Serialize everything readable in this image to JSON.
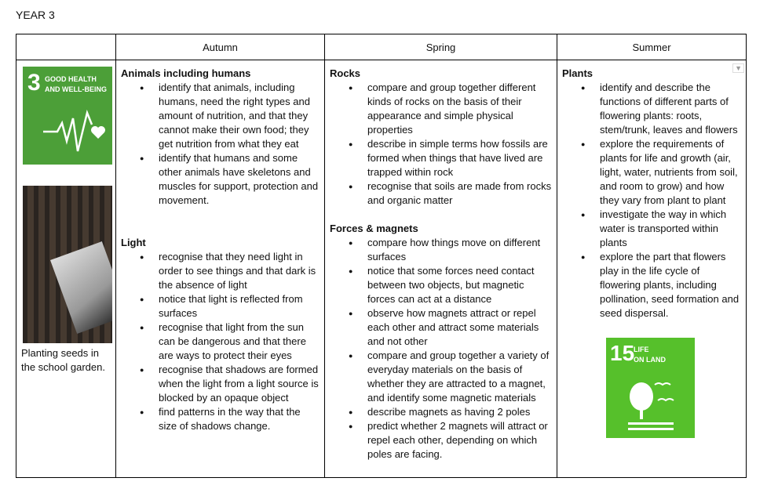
{
  "title": "YEAR 3",
  "headers": [
    "",
    "Autumn",
    "Spring",
    "Summer"
  ],
  "left": {
    "sdg3": {
      "number": "3",
      "line1": "GOOD HEALTH",
      "line2": "AND WELL-BEING",
      "color": "#4c9f38"
    },
    "caption": "Planting seeds in the school garden."
  },
  "autumn": [
    {
      "heading": "Animals including humans",
      "items": [
        "identify that animals, including humans, need the right types and amount of nutrition, and that they cannot make their own food; they get nutrition from what they eat",
        "identify that humans and some other animals have skeletons and muscles for support, protection and movement."
      ]
    },
    {
      "heading": "Light",
      "items": [
        "recognise that they need light in order to see things and that dark is the absence of light",
        "notice that light is reflected from surfaces",
        "recognise that light from the sun can be dangerous and that there are ways to protect their eyes",
        "recognise that shadows are formed when the light from a light source is blocked by an opaque object",
        "find patterns in the way that the size of shadows change."
      ]
    }
  ],
  "spring": [
    {
      "heading": "Rocks",
      "items": [
        "compare and group together different kinds of rocks on the basis of their appearance and simple physical properties",
        "describe in simple terms how fossils are formed when things that have lived are trapped within rock",
        "recognise that soils are made from rocks and organic matter"
      ]
    },
    {
      "heading": "Forces & magnets",
      "items": [
        "compare how things move on different surfaces",
        "notice that some forces need contact between two objects, but magnetic forces can act at a distance",
        "observe how magnets attract or repel each other and attract some materials and not other",
        "compare and group together a variety of everyday materials on the basis of whether they are attracted to a magnet, and identify some magnetic materials",
        "describe magnets as having 2 poles",
        "predict whether 2 magnets will attract or repel each other, depending on which poles are facing."
      ]
    }
  ],
  "summer": [
    {
      "heading": "Plants",
      "items": [
        "identify and describe the functions of different parts of flowering plants: roots, stem/trunk, leaves and flowers",
        "explore the requirements of plants for life and growth (air, light, water, nutrients from soil, and room to grow) and how they vary from plant to plant",
        "investigate the way in which water is transported within plants",
        "explore the part that flowers play in the life cycle of flowering plants, including pollination, seed formation and seed dispersal."
      ]
    }
  ],
  "sdg15": {
    "number": "15",
    "line1": "LIFE",
    "line2": "ON LAND",
    "color": "#56c02b"
  }
}
